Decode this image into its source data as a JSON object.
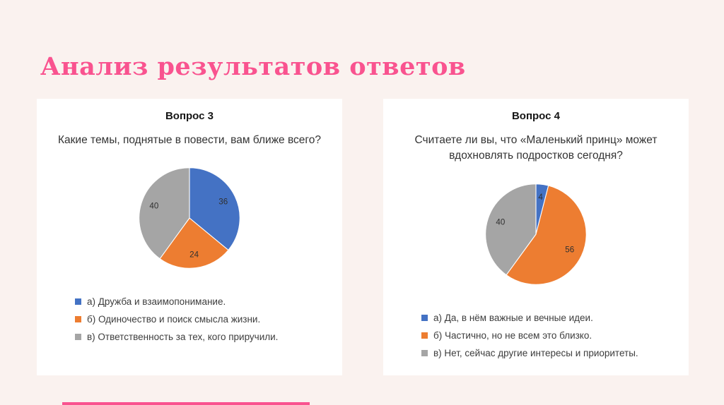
{
  "slide": {
    "title": "Анализ результатов ответов",
    "accent_color": "#f9538f",
    "background_color": "#faf2ef"
  },
  "chart_data": [
    {
      "type": "pie",
      "title": "Вопрос 3",
      "question": "Какие темы, поднятые в повести, вам ближе всего?",
      "values": [
        36,
        24,
        40
      ],
      "labels": [
        "36",
        "24",
        "40"
      ],
      "colors": [
        "#4472c4",
        "#ed7d31",
        "#a5a5a5"
      ],
      "legend": [
        "а) Дружба и взаимопонимание.",
        "б) Одиночество и поиск смысла жизни.",
        "в) Ответственность за тех, кого приручили."
      ],
      "legend_position": "bottom"
    },
    {
      "type": "pie",
      "title": "Вопрос 4",
      "question": "Считаете ли вы, что «Маленький принц» может вдохновлять подростков сегодня?",
      "values": [
        4,
        56,
        40
      ],
      "labels": [
        "4",
        "56",
        "40"
      ],
      "colors": [
        "#4472c4",
        "#ed7d31",
        "#a5a5a5"
      ],
      "legend": [
        "а) Да, в нём важные и вечные идеи.",
        "б) Частично, но не всем это близко.",
        "в) Нет, сейчас другие интересы и приоритеты."
      ],
      "legend_position": "bottom"
    }
  ]
}
